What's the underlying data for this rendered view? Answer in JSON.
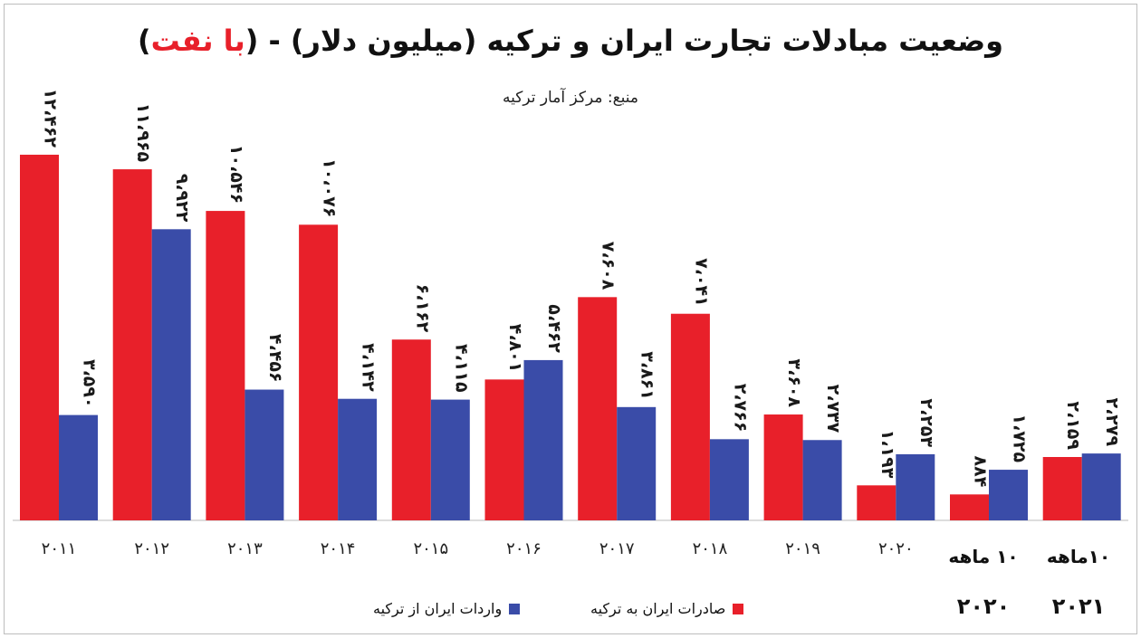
{
  "title": {
    "main": "وضعیت مبادلات تجارت ایران و ترکیه (میلیون دلار) - (",
    "highlight": "با نفت",
    "close": ")"
  },
  "source": "منبع: مرکز آمار ترکیه",
  "legend": {
    "exports": "صادرات ایران به ترکیه",
    "imports": "واردات ایران از ترکیه"
  },
  "period_labels": {
    "p2020_label": "۱۰ ماهه",
    "p2020_year": "۲۰۲۰",
    "p2021_label": "۱۰ماهه",
    "p2021_year": "۲۰۲۱"
  },
  "colors": {
    "exports": "#e8202a",
    "imports": "#3a4ca8"
  },
  "chart_data": {
    "type": "bar",
    "title": "وضعیت مبادلات تجارت ایران و ترکیه (میلیون دلار) - (با نفت)",
    "categories": [
      "۲۰۱۱",
      "۲۰۱۲",
      "۲۰۱۳",
      "۲۰۱۴",
      "۲۰۱۵",
      "۲۰۱۶",
      "۲۰۱۷",
      "۲۰۱۸",
      "۲۰۱۹",
      "۲۰۲۰",
      "",
      ""
    ],
    "series": [
      {
        "name": "صادرات ایران به ترکیه",
        "values": [
          12462,
          11965,
          10546,
          10076,
          6162,
          4801,
          7608,
          7041,
          3608,
          1193,
          884,
          2159
        ],
        "labels": [
          "۱۲،۴۶۲",
          "۱۱،۹۶۵",
          "۱۰،۵۴۶",
          "۱۰،۰۷۶",
          "۶،۱۶۲",
          "۴،۸۰۱",
          "۷،۶۰۸",
          "۷،۰۴۱",
          "۳،۶۰۸",
          "۱،۱۹۳",
          "۸۸۴",
          "۲،۱۵۹"
        ]
      },
      {
        "name": "واردات ایران از ترکیه",
        "values": [
          3590,
          9922,
          4456,
          4142,
          4115,
          5462,
          3861,
          2766,
          2737,
          2253,
          1725,
          2279
        ],
        "labels": [
          "۳،۵۹۰",
          "۹،۹۲۲",
          "۴،۴۵۶",
          "۴،۱۴۲",
          "۴،۱۱۵",
          "۵،۴۶۲",
          "۳،۸۶۱",
          "۲،۷۶۶",
          "۲،۷۳۷",
          "۲،۲۵۳",
          "۱،۷۲۵",
          "۲،۲۷۹"
        ]
      }
    ],
    "ylim": [
      0,
      12800
    ],
    "grid": false,
    "legend": "bottom"
  }
}
